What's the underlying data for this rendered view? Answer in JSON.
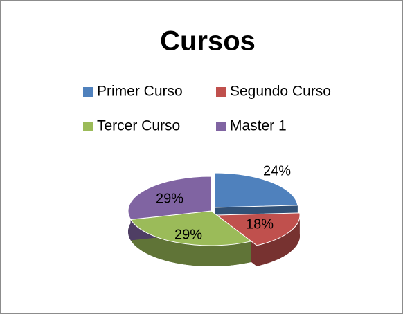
{
  "chart_data": {
    "type": "pie3d",
    "title": "Cursos",
    "categories": [
      "Primer Curso",
      "Segundo Curso",
      "Tercer Curso",
      "Master 1"
    ],
    "values": [
      24,
      18,
      29,
      29
    ],
    "value_labels": [
      "24%",
      "18%",
      "29%",
      "29%"
    ],
    "colors": [
      "#4f81bd",
      "#c0504d",
      "#9bbb59",
      "#8064a2"
    ],
    "legend": "top"
  }
}
